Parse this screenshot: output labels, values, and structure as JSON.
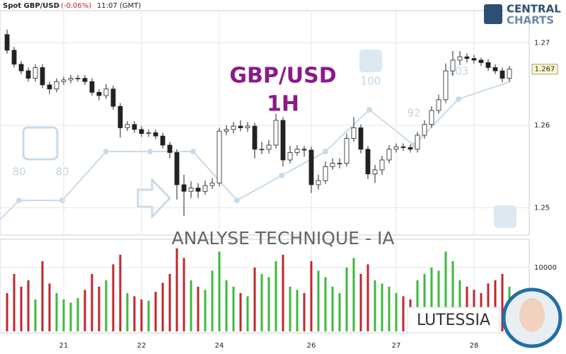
{
  "header": {
    "symbol": "Spot GBP/USD",
    "change": "(-0.06%)",
    "time": "11:07 (GMT)"
  },
  "brand": {
    "line1": "CENTRAL",
    "line2": "CHARTS"
  },
  "watermark": "ANALYSE TECHNIQUE - IA",
  "watermark_labels": [
    "80",
    "80",
    "100",
    "92",
    "103"
  ],
  "author": "LUTESSIA",
  "chart_data": {
    "type": "candlestick",
    "title": "GBP/USD",
    "subtitle": "1H",
    "categories": [
      null,
      null,
      null,
      null,
      null,
      null,
      null,
      null,
      "21",
      null,
      null,
      null,
      null,
      null,
      null,
      null,
      null,
      null,
      null,
      "22",
      null,
      null,
      null,
      null,
      null,
      null,
      null,
      null,
      null,
      null,
      "24",
      null,
      null,
      null,
      null,
      null,
      null,
      null,
      null,
      null,
      null,
      null,
      null,
      "26",
      null,
      null,
      null,
      null,
      null,
      null,
      null,
      null,
      null,
      null,
      null,
      "27",
      null,
      null,
      null,
      null,
      null,
      null,
      null,
      null,
      null,
      null,
      "28",
      null,
      null,
      null,
      null,
      null
    ],
    "open": [
      1.271,
      1.2691,
      1.2674,
      1.2666,
      1.2657,
      1.267,
      1.2649,
      1.2644,
      1.2653,
      1.2655,
      1.2657,
      1.2657,
      1.2653,
      1.264,
      1.2636,
      1.2644,
      1.2623,
      1.2597,
      1.2601,
      1.2595,
      1.259,
      1.2591,
      1.2587,
      1.2576,
      1.2567,
      1.2528,
      1.252,
      1.2524,
      1.252,
      1.2527,
      1.253,
      1.2593,
      1.2595,
      1.2599,
      1.2597,
      1.2599,
      1.2571,
      1.2571,
      1.2576,
      1.2606,
      1.2558,
      1.2567,
      1.2571,
      1.257,
      1.2528,
      1.2533,
      1.255,
      1.2554,
      1.2554,
      1.2584,
      1.2597,
      1.2571,
      1.2541,
      1.2546,
      1.2558,
      1.2571,
      1.2574,
      1.2573,
      1.2571,
      1.2588,
      1.2601,
      1.2618,
      1.2631,
      1.2666,
      1.2679,
      1.2683,
      1.2681,
      1.2679,
      1.2676,
      1.267,
      1.2666,
      1.2657
    ],
    "high": [
      1.2716,
      1.2695,
      1.2678,
      1.267,
      1.2674,
      1.2674,
      1.2653,
      1.2657,
      1.2659,
      1.2661,
      1.2661,
      1.2661,
      1.2657,
      1.2644,
      1.265,
      1.2648,
      1.2627,
      1.2605,
      1.2605,
      1.2599,
      1.2595,
      1.2595,
      1.2591,
      1.258,
      1.2571,
      1.254,
      1.2532,
      1.253,
      1.2533,
      1.2536,
      1.2597,
      1.26,
      1.2604,
      1.2606,
      1.2604,
      1.2603,
      1.258,
      1.2582,
      1.2614,
      1.261,
      1.2575,
      1.2576,
      1.2575,
      1.2574,
      1.254,
      1.2556,
      1.256,
      1.256,
      1.259,
      1.261,
      1.2601,
      1.2575,
      1.2552,
      1.2563,
      1.2576,
      1.2578,
      1.2578,
      1.2577,
      1.2592,
      1.2606,
      1.2623,
      1.2637,
      1.2675,
      1.269,
      1.269,
      1.2687,
      1.2685,
      1.2682,
      1.268,
      1.2674,
      1.267,
      1.2672
    ],
    "low": [
      1.2687,
      1.267,
      1.2662,
      1.2653,
      1.2653,
      1.2645,
      1.2638,
      1.264,
      1.2649,
      1.2651,
      1.2653,
      1.2649,
      1.2636,
      1.263,
      1.2632,
      1.2619,
      1.2585,
      1.2593,
      1.2591,
      1.2586,
      1.2586,
      1.2583,
      1.2572,
      1.256,
      1.251,
      1.249,
      1.2512,
      1.2512,
      1.2516,
      1.2523,
      1.2526,
      1.2588,
      1.259,
      1.2593,
      1.2592,
      1.256,
      1.2565,
      1.2566,
      1.2572,
      1.255,
      1.2554,
      1.2563,
      1.2562,
      1.2518,
      1.2522,
      1.2529,
      1.2546,
      1.2548,
      1.255,
      1.258,
      1.2566,
      1.2535,
      1.253,
      1.254,
      1.2554,
      1.2567,
      1.2569,
      1.2567,
      1.2567,
      1.2584,
      1.2597,
      1.2614,
      1.2627,
      1.266,
      1.2673,
      1.2676,
      1.2675,
      1.2672,
      1.2666,
      1.2662,
      1.2652,
      1.2653
    ],
    "close": [
      1.2691,
      1.2674,
      1.2666,
      1.2657,
      1.267,
      1.2649,
      1.2644,
      1.2653,
      1.2655,
      1.2657,
      1.2657,
      1.2653,
      1.264,
      1.2636,
      1.2644,
      1.2623,
      1.2597,
      1.2601,
      1.2595,
      1.259,
      1.2591,
      1.2587,
      1.2576,
      1.2567,
      1.2528,
      1.252,
      1.2524,
      1.252,
      1.2527,
      1.253,
      1.2593,
      1.2595,
      1.2599,
      1.2597,
      1.2599,
      1.2571,
      1.2571,
      1.2576,
      1.2606,
      1.2558,
      1.2567,
      1.2571,
      1.257,
      1.2528,
      1.2533,
      1.255,
      1.2554,
      1.2554,
      1.2584,
      1.2597,
      1.2571,
      1.2541,
      1.2546,
      1.2558,
      1.2571,
      1.2574,
      1.2573,
      1.2571,
      1.2588,
      1.2601,
      1.2618,
      1.2631,
      1.2666,
      1.2679,
      1.2683,
      1.2681,
      1.2679,
      1.2676,
      1.267,
      1.2666,
      1.2657,
      1.2668
    ],
    "volume": [
      6000,
      9000,
      7000,
      8000,
      5000,
      11000,
      7500,
      6000,
      5000,
      4500,
      5200,
      6500,
      9000,
      7000,
      8000,
      10500,
      12000,
      6000,
      5500,
      5000,
      4800,
      6200,
      7600,
      9000,
      13000,
      11500,
      8000,
      7000,
      6500,
      9500,
      12500,
      8000,
      7000,
      6000,
      5500,
      10000,
      9000,
      8500,
      11000,
      12000,
      7000,
      6500,
      6000,
      11000,
      9500,
      8500,
      7000,
      6000,
      10000,
      11500,
      9000,
      10500,
      8000,
      7500,
      7000,
      6000,
      5500,
      5000,
      8000,
      9000,
      10000,
      9500,
      12500,
      11000,
      8000,
      7000,
      6500,
      6000,
      7500,
      8000,
      9000,
      7000
    ],
    "last_price": {
      "value": 1.2668,
      "label": "1.267"
    },
    "ylim": [
      1.2467,
      1.2739
    ],
    "yticks": [
      1.25,
      1.26,
      1.27
    ],
    "volume_ylim": [
      0,
      14200
    ],
    "volume_ticks": [
      10000
    ],
    "up_color": "#ffffff",
    "down_color": "#222222",
    "wick_color": "#222222",
    "volume_up_color": "#3cb93c",
    "volume_down_color": "#c0262c",
    "grid": true
  }
}
